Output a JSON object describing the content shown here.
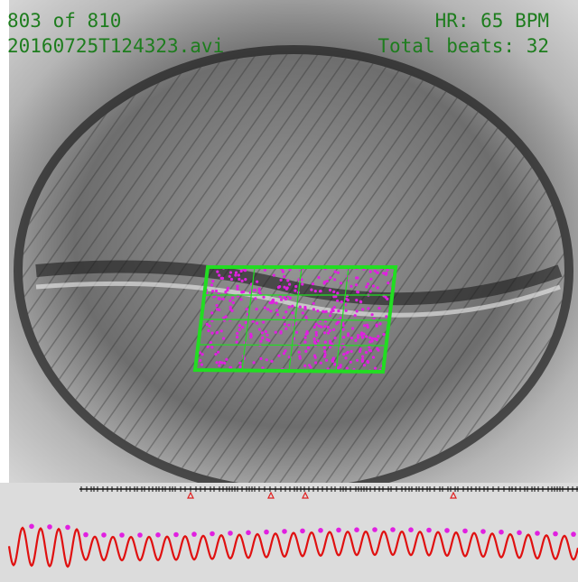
{
  "header": {
    "frame": "803 of 810",
    "file": "20160725T124323.avi",
    "heart_rate": "HR: 65 BPM",
    "total_beats": "Total beats: 32"
  }
}
